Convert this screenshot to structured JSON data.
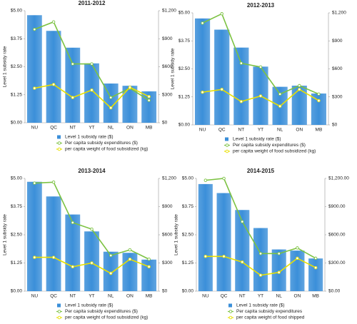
{
  "chart_data": [
    {
      "type": "bar",
      "title": "2011-2012",
      "y_label": "Level 1 subsidy rate",
      "categories": [
        "NU",
        "QC",
        "NT",
        "YT",
        "NL",
        "ON",
        "MB"
      ],
      "ylim": [
        0,
        5
      ],
      "yticks": [
        {
          "value": 0,
          "label": "$0.00"
        },
        {
          "value": 1.25,
          "label": "$1.25"
        },
        {
          "value": 2.5,
          "label": "$2.50"
        },
        {
          "value": 3.75,
          "label": "$3.75"
        },
        {
          "value": 5,
          "label": "$5.00"
        }
      ],
      "y2lim": [
        0,
        1200
      ],
      "y2ticks": [
        {
          "value": 0,
          "label": "$0"
        },
        {
          "value": 300,
          "label": "$300"
        },
        {
          "value": 600,
          "label": "$600"
        },
        {
          "value": 900,
          "label": "$900"
        },
        {
          "value": 1200,
          "label": "$1,200"
        }
      ],
      "series": [
        {
          "name": "Level 1 subsidy rate ($)",
          "color": "#3b8fd9",
          "values": [
            4.8,
            4.1,
            3.35,
            2.65,
            1.75,
            1.65,
            1.4
          ]
        },
        {
          "name": "Per capita subsidy expenditures ($)",
          "color": "#7cc242",
          "type": "line",
          "axis": "y2",
          "values": [
            1000,
            1080,
            630,
            630,
            270,
            370,
            240
          ]
        },
        {
          "name": "per capita weight of food subsidized (kg)",
          "color": "#e8e000",
          "type": "line",
          "axis": "y2",
          "values": [
            370,
            410,
            270,
            350,
            160,
            380,
            280
          ]
        }
      ]
    },
    {
      "type": "bar",
      "title": "2012-2013",
      "y_label": "Level 1 subsidy rate",
      "categories": [
        "NU",
        "QC",
        "NT",
        "YT",
        "NL",
        "ON",
        "MB"
      ],
      "ylim": [
        0,
        5
      ],
      "yticks": [
        {
          "value": 0,
          "label": "$0.00"
        },
        {
          "value": 1.25,
          "label": "$1.25"
        },
        {
          "value": 2.5,
          "label": "$2.50"
        },
        {
          "value": 3.75,
          "label": "$3.75"
        },
        {
          "value": 5,
          "label": "$5.00"
        }
      ],
      "y2lim": [
        0,
        1200
      ],
      "y2ticks": [
        {
          "value": 0,
          "label": "$0"
        },
        {
          "value": 300,
          "label": "$300"
        },
        {
          "value": 600,
          "label": "$600"
        },
        {
          "value": 900,
          "label": "$900"
        },
        {
          "value": 1200,
          "label": "$1,200"
        }
      ],
      "series": [
        {
          "name": "Level 1 subsidy rate ($)",
          "color": "#3b8fd9",
          "values": [
            4.75,
            4.25,
            3.45,
            2.6,
            1.7,
            1.75,
            1.4
          ]
        },
        {
          "name": "Per capita subsidy expenditures ($)",
          "color": "#7cc242",
          "type": "line",
          "axis": "y2",
          "values": [
            1090,
            1190,
            660,
            620,
            330,
            420,
            330
          ]
        },
        {
          "name": "per capita weight of food subsidized (kg)",
          "color": "#e8e000",
          "type": "line",
          "axis": "y2",
          "values": [
            350,
            380,
            250,
            310,
            200,
            380,
            260
          ]
        }
      ]
    },
    {
      "type": "bar",
      "title": "2013-2014",
      "y_label": "Level 1 subsidy rate",
      "categories": [
        "NU",
        "QC",
        "NT",
        "YT",
        "NL",
        "ON",
        "MB"
      ],
      "ylim": [
        0,
        5
      ],
      "yticks": [
        {
          "value": 0,
          "label": "$0.00"
        },
        {
          "value": 1.25,
          "label": "$1.25"
        },
        {
          "value": 2.5,
          "label": "$2.50"
        },
        {
          "value": 3.75,
          "label": "$3.75"
        },
        {
          "value": 5,
          "label": "$5.00"
        }
      ],
      "y2lim": [
        0,
        1200
      ],
      "y2ticks": [
        {
          "value": 0,
          "label": "$0"
        },
        {
          "value": 300,
          "label": "$300"
        },
        {
          "value": 600,
          "label": "$600"
        },
        {
          "value": 900,
          "label": "$900"
        },
        {
          "value": 1200,
          "label": "$1,200"
        }
      ],
      "series": [
        {
          "name": "Level 1 subsidy rate ($)",
          "color": "#3b8fd9",
          "values": [
            4.85,
            4.2,
            3.4,
            2.65,
            1.75,
            1.7,
            1.4
          ]
        },
        {
          "name": "Per capita subsidy expenditures ($)",
          "color": "#7cc242",
          "type": "line",
          "axis": "y2",
          "values": [
            1150,
            1160,
            730,
            660,
            380,
            440,
            340
          ]
        },
        {
          "name": "per capita weight of food subsidized (kg)",
          "color": "#e8e000",
          "type": "line",
          "axis": "y2",
          "values": [
            360,
            360,
            260,
            300,
            190,
            340,
            260
          ]
        }
      ]
    },
    {
      "type": "bar",
      "title": "2014-2015",
      "y_label": "Level 1 subsidy rate",
      "categories": [
        "NU",
        "QC",
        "NT",
        "YT",
        "NL",
        "ON",
        "MB"
      ],
      "ylim": [
        0,
        5
      ],
      "yticks": [
        {
          "value": 0,
          "label": "$0.00"
        },
        {
          "value": 1.25,
          "label": "$1.25"
        },
        {
          "value": 2.5,
          "label": "$2.50"
        },
        {
          "value": 3.75,
          "label": "$3.75"
        },
        {
          "value": 5,
          "label": "$5.00"
        }
      ],
      "y2lim": [
        0,
        1200
      ],
      "y2ticks": [
        {
          "value": 0,
          "label": "$0.00"
        },
        {
          "value": 300,
          "label": "$300.00"
        },
        {
          "value": 600,
          "label": "$600.00"
        },
        {
          "value": 900,
          "label": "$900.00"
        },
        {
          "value": 1200,
          "label": "$1,200.00"
        }
      ],
      "series": [
        {
          "name": "Level 1 subsidy rate ($)",
          "color": "#3b8fd9",
          "values": [
            4.75,
            4.35,
            3.6,
            2.8,
            1.85,
            1.8,
            1.45
          ]
        },
        {
          "name": "Per capita subsidy expenditures",
          "color": "#7cc242",
          "type": "line",
          "axis": "y2",
          "values": [
            1180,
            1200,
            740,
            400,
            400,
            460,
            350
          ]
        },
        {
          "name": "per capita weight of food shipped",
          "color": "#e8e000",
          "type": "line",
          "axis": "y2",
          "values": [
            370,
            370,
            310,
            170,
            200,
            350,
            250
          ]
        }
      ]
    }
  ]
}
